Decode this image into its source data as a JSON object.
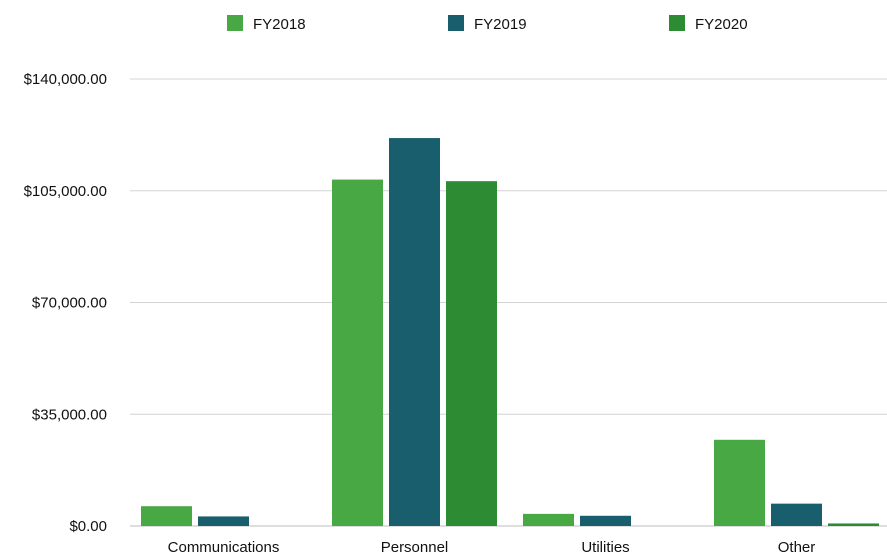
{
  "chart_data": {
    "type": "bar",
    "title": "",
    "xlabel": "",
    "ylabel": "",
    "categories": [
      "Communications",
      "Personnel",
      "Utilities",
      "Other"
    ],
    "series": [
      {
        "name": "FY2018",
        "color": "#48a844",
        "values": [
          6200,
          108500,
          3800,
          27000
        ]
      },
      {
        "name": "FY2019",
        "color": "#185e6c",
        "values": [
          3000,
          121500,
          3200,
          7000
        ]
      },
      {
        "name": "FY2020",
        "color": "#2d8c33",
        "values": [
          0,
          108000,
          0,
          800
        ]
      }
    ],
    "ylim": [
      0,
      140000
    ],
    "yticks": [
      0,
      35000,
      70000,
      105000,
      140000
    ],
    "ytick_labels": [
      "$0.00",
      "$35,000.00",
      "$70,000.00",
      "$105,000.00",
      "$140,000.00"
    ],
    "grid": true,
    "legend": "top"
  }
}
